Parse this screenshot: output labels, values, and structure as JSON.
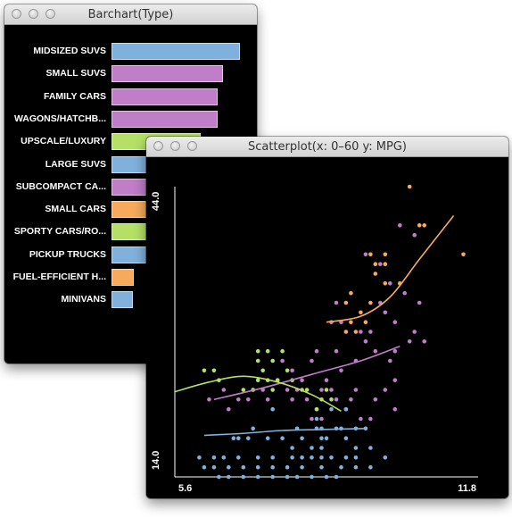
{
  "barchart_window": {
    "title": "Barchart(Type)",
    "categories": [
      {
        "label": "MIDSIZED SUVS",
        "value": 144,
        "color": "#7fb1dc"
      },
      {
        "label": "SMALL SUVS",
        "value": 125,
        "color": "#c07dc8"
      },
      {
        "label": "FAMILY CARS",
        "value": 119,
        "color": "#c07dc8"
      },
      {
        "label": "WAGONS/HATCHB...",
        "value": 119,
        "color": "#c07dc8"
      },
      {
        "label": "UPSCALE/LUXURY",
        "value": 100,
        "color": "#b5e065"
      },
      {
        "label": "LARGE SUVS",
        "value": 70,
        "color": "#7fb1dc"
      },
      {
        "label": "SUBCOMPACT CA...",
        "value": 62,
        "color": "#c07dc8"
      },
      {
        "label": "SMALL CARS",
        "value": 60,
        "color": "#f7aa5b"
      },
      {
        "label": "SPORTY CARS/RO...",
        "value": 55,
        "color": "#b5e065"
      },
      {
        "label": "PICKUP TRUCKS",
        "value": 48,
        "color": "#7fb1dc"
      },
      {
        "label": "FUEL-EFFICIENT H...",
        "value": 25,
        "color": "#f7aa5b"
      },
      {
        "label": "MINIVANS",
        "value": 24,
        "color": "#7fb1dc"
      }
    ]
  },
  "scatter_window": {
    "title": "Scatterplot(x: 0–60 y: MPG)"
  },
  "chart_data": {
    "type": "scatter",
    "title": "",
    "xlabel": "",
    "ylabel": "",
    "xlim": [
      5.6,
      11.8
    ],
    "ylim": [
      14.0,
      44.0
    ],
    "x_ticks": [
      "5.6",
      "11.8"
    ],
    "y_ticks": [
      "14.0",
      "44.0"
    ],
    "series": [
      {
        "color": "#f7aa5b",
        "points": [
          [
            10.4,
            44
          ],
          [
            10.6,
            40
          ],
          [
            10.7,
            40
          ],
          [
            11.5,
            37
          ],
          [
            9.9,
            37
          ],
          [
            9.6,
            37
          ],
          [
            9.9,
            36
          ],
          [
            9.7,
            36
          ],
          [
            10.2,
            34
          ],
          [
            9.9,
            34
          ],
          [
            9.7,
            35
          ],
          [
            9.1,
            32
          ],
          [
            9.2,
            33
          ],
          [
            9.5,
            30
          ],
          [
            9.6,
            32
          ],
          [
            9.4,
            31
          ],
          [
            9.1,
            29
          ],
          [
            9.3,
            29
          ],
          [
            9.2,
            30
          ]
        ],
        "trend": [
          [
            8.7,
            30
          ],
          [
            9.4,
            30.6
          ],
          [
            10.0,
            32.6
          ],
          [
            10.6,
            36.5
          ],
          [
            11.3,
            41
          ]
        ]
      },
      {
        "color": "#c07dc8",
        "points": [
          [
            10.2,
            40
          ],
          [
            10.5,
            39
          ],
          [
            9.5,
            37
          ],
          [
            9.8,
            36
          ],
          [
            10.0,
            34
          ],
          [
            10.3,
            33
          ],
          [
            10.6,
            32
          ],
          [
            9.8,
            32
          ],
          [
            9.9,
            31
          ],
          [
            10.1,
            30
          ],
          [
            10.5,
            29
          ],
          [
            9.6,
            29
          ],
          [
            8.9,
            32
          ],
          [
            8.8,
            30
          ],
          [
            9.0,
            30
          ],
          [
            9.4,
            29
          ],
          [
            9.5,
            28
          ],
          [
            10.4,
            28
          ],
          [
            10.7,
            28
          ],
          [
            9.7,
            27
          ],
          [
            10.1,
            27
          ],
          [
            8.5,
            27
          ],
          [
            8.9,
            27
          ],
          [
            8.4,
            26
          ],
          [
            9.3,
            26
          ],
          [
            9.0,
            25
          ],
          [
            10.0,
            26
          ],
          [
            10.1,
            24
          ],
          [
            8.7,
            24
          ],
          [
            8.2,
            24
          ],
          [
            8.0,
            25
          ],
          [
            7.8,
            26
          ],
          [
            7.7,
            24
          ],
          [
            7.9,
            23
          ],
          [
            8.6,
            23
          ],
          [
            8.1,
            23
          ],
          [
            9.2,
            22
          ],
          [
            9.1,
            21
          ],
          [
            9.4,
            20
          ],
          [
            9.7,
            22
          ],
          [
            10.1,
            21
          ],
          [
            8.9,
            22
          ],
          [
            8.0,
            22
          ],
          [
            7.5,
            22
          ],
          [
            7.2,
            23
          ],
          [
            7.1,
            22
          ],
          [
            6.7,
            21
          ],
          [
            6.9,
            22
          ],
          [
            6.6,
            23
          ],
          [
            6.3,
            22
          ],
          [
            8.5,
            21
          ],
          [
            9.3,
            23
          ],
          [
            8.8,
            23
          ],
          [
            8.3,
            22
          ],
          [
            9.9,
            23
          ],
          [
            9.6,
            20
          ],
          [
            8.6,
            20
          ],
          [
            8.4,
            20
          ],
          [
            7.4,
            23
          ]
        ],
        "trend": [
          [
            6.4,
            22
          ],
          [
            7.4,
            23.2
          ],
          [
            8.4,
            24.6
          ],
          [
            9.4,
            26
          ],
          [
            10.2,
            27.5
          ]
        ]
      },
      {
        "color": "#b5e065",
        "points": [
          [
            7.3,
            27
          ],
          [
            7.5,
            27
          ],
          [
            7.8,
            27
          ],
          [
            7.3,
            26
          ],
          [
            7.6,
            26
          ],
          [
            7.4,
            25
          ],
          [
            6.2,
            25
          ],
          [
            6.4,
            25
          ],
          [
            7.3,
            24
          ],
          [
            7.5,
            24
          ],
          [
            7.7,
            24
          ],
          [
            8.0,
            24
          ],
          [
            7.2,
            23
          ],
          [
            7.6,
            23
          ],
          [
            8.3,
            23
          ],
          [
            8.7,
            23
          ],
          [
            7.0,
            23
          ],
          [
            8.2,
            23
          ],
          [
            8.6,
            22
          ],
          [
            8.8,
            22
          ],
          [
            8.5,
            21
          ],
          [
            6.5,
            24
          ],
          [
            7.9,
            25
          ]
        ],
        "trend": [
          [
            5.6,
            22.8
          ],
          [
            6.3,
            23.8
          ],
          [
            7.0,
            24.4
          ],
          [
            7.7,
            23.8
          ],
          [
            8.4,
            22.5
          ],
          [
            9.0,
            20.8
          ]
        ]
      },
      {
        "color": "#7fb1dc",
        "points": [
          [
            8.5,
            20
          ],
          [
            8.9,
            19
          ],
          [
            8.7,
            18
          ],
          [
            8.2,
            18
          ],
          [
            9.1,
            18
          ],
          [
            8.0,
            17
          ],
          [
            8.4,
            17
          ],
          [
            8.6,
            17
          ],
          [
            9.6,
            17
          ],
          [
            9.3,
            16
          ],
          [
            9.1,
            16
          ],
          [
            9.3,
            17
          ],
          [
            8.8,
            16
          ],
          [
            8.2,
            16
          ],
          [
            8.6,
            16
          ],
          [
            7.3,
            16
          ],
          [
            7.6,
            16
          ],
          [
            8.0,
            16
          ],
          [
            8.4,
            16
          ],
          [
            6.9,
            16
          ],
          [
            6.6,
            16
          ],
          [
            6.4,
            16
          ],
          [
            6.1,
            16
          ],
          [
            6.2,
            15
          ],
          [
            6.4,
            15
          ],
          [
            6.7,
            15
          ],
          [
            7.0,
            15
          ],
          [
            7.3,
            15
          ],
          [
            7.6,
            15
          ],
          [
            7.9,
            15
          ],
          [
            8.2,
            15
          ],
          [
            8.6,
            15
          ],
          [
            9.0,
            15
          ],
          [
            9.3,
            15
          ],
          [
            9.6,
            15
          ],
          [
            8.9,
            14
          ],
          [
            8.7,
            14
          ],
          [
            8.4,
            14
          ],
          [
            8.1,
            14
          ],
          [
            7.9,
            14
          ],
          [
            7.6,
            14
          ],
          [
            7.3,
            14
          ],
          [
            7.0,
            14
          ],
          [
            6.7,
            14
          ],
          [
            6.5,
            14
          ],
          [
            6.9,
            18
          ],
          [
            7.1,
            18
          ],
          [
            7.5,
            18
          ],
          [
            7.8,
            18
          ],
          [
            7.2,
            19
          ],
          [
            8.1,
            19
          ],
          [
            8.5,
            19
          ],
          [
            8.6,
            19
          ],
          [
            9.0,
            19
          ],
          [
            9.3,
            19
          ],
          [
            8.8,
            21
          ],
          [
            7.6,
            21
          ],
          [
            9.1,
            21
          ],
          [
            6.8,
            18
          ],
          [
            8.6,
            18
          ],
          [
            9.9,
            16
          ],
          [
            9.5,
            19
          ]
        ],
        "trend": [
          [
            6.2,
            18.3
          ],
          [
            7.0,
            18.5
          ],
          [
            7.8,
            18.8
          ],
          [
            8.6,
            18.9
          ],
          [
            9.5,
            19
          ]
        ]
      }
    ]
  }
}
